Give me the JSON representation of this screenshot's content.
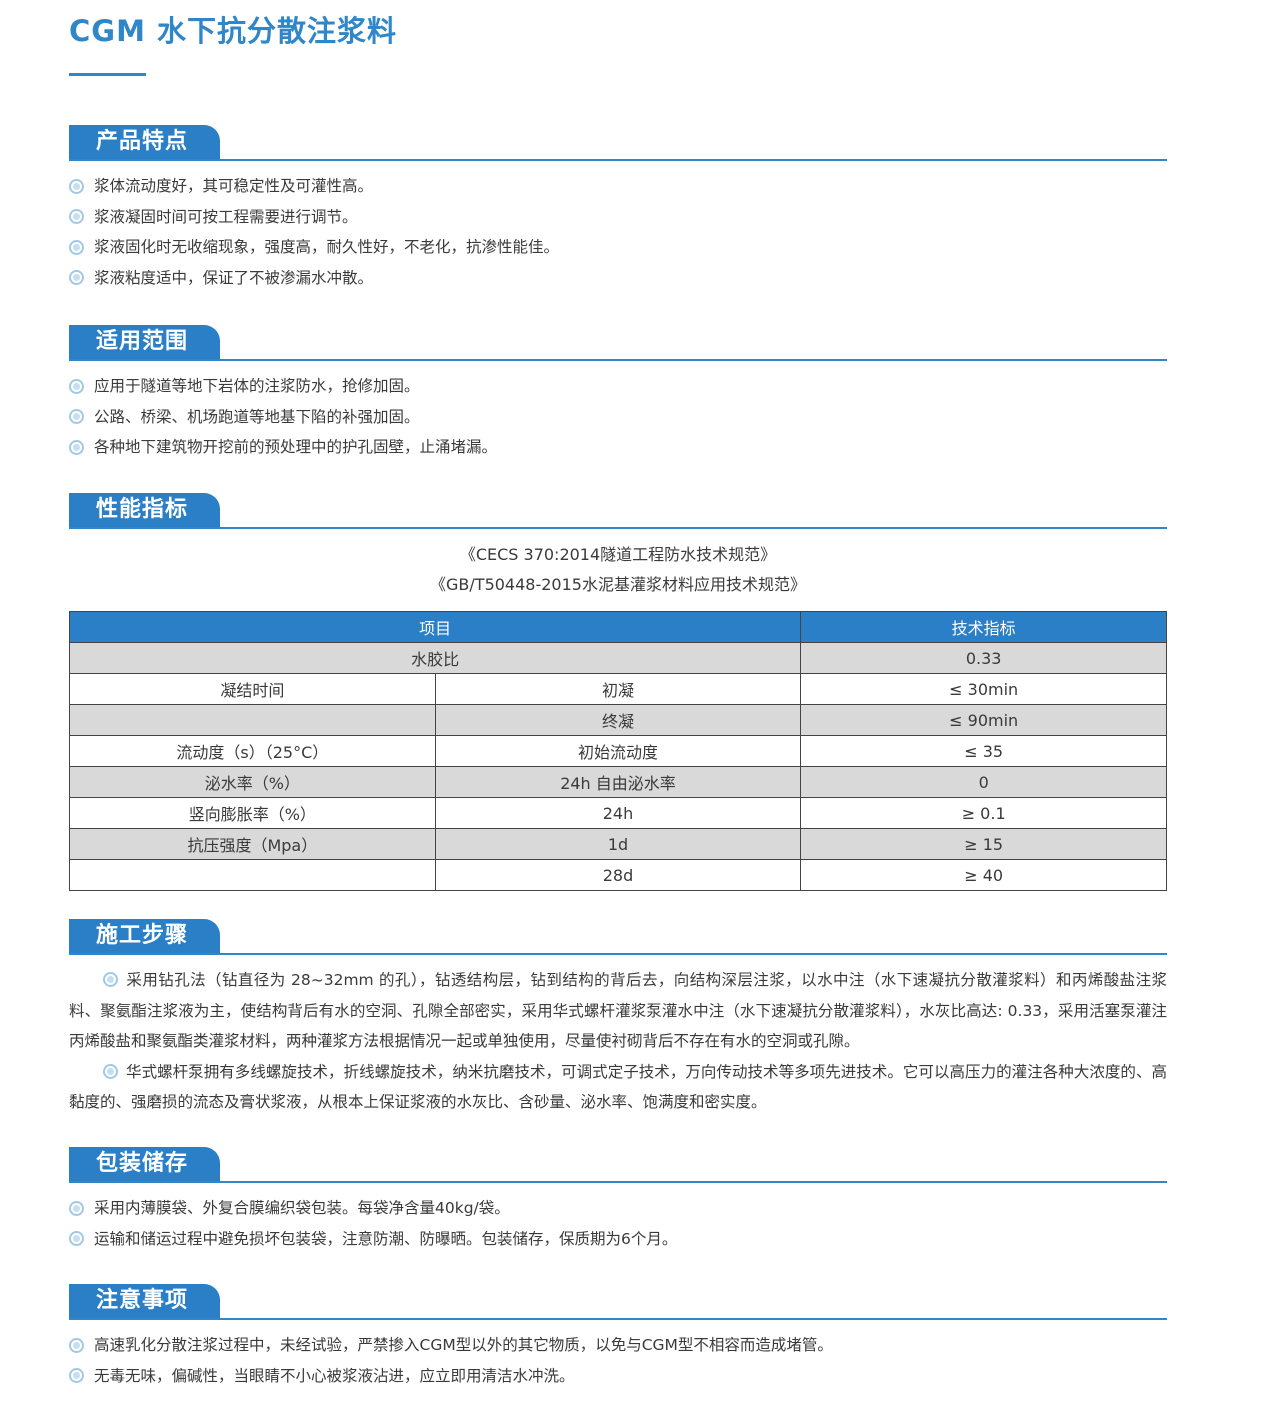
{
  "title": "CGM 水下抗分散注浆料",
  "sections": {
    "features": {
      "heading": "产品特点",
      "items": [
        "浆体流动度好，其可稳定性及可灌性高。",
        "浆液凝固时间可按工程需要进行调节。",
        "浆液固化时无收缩现象，强度高，耐久性好，不老化，抗渗性能佳。",
        "浆液粘度适中，保证了不被渗漏水冲散。"
      ]
    },
    "scope": {
      "heading": "适用范围",
      "items": [
        "应用于隧道等地下岩体的注浆防水，抢修加固。",
        "公路、桥梁、机场跑道等地基下陷的补强加固。",
        "各种地下建筑物开挖前的预处理中的护孔固壁，止涌堵漏。"
      ]
    },
    "performance": {
      "heading": "性能指标",
      "standards": [
        "《CECS 370:2014隧道工程防水技术规范》",
        "《GB/T50448-2015水泥基灌浆材料应用技术规范》"
      ],
      "table": {
        "header": [
          "项目",
          "技术指标"
        ],
        "rows": [
          [
            "水胶比",
            "",
            "0.33"
          ],
          [
            "凝结时间",
            "初凝",
            "≤ 30min"
          ],
          [
            "",
            "终凝",
            "≤ 90min"
          ],
          [
            "流动度（s）（25°C）",
            "初始流动度",
            "≤ 35"
          ],
          [
            "泌水率（%）",
            "24h 自由泌水率",
            "0"
          ],
          [
            "竖向膨胀率（%）",
            "24h",
            "≥ 0.1"
          ],
          [
            "抗压强度（Mpa）",
            "1d",
            "≥ 15"
          ],
          [
            "",
            "28d",
            "≥ 40"
          ]
        ]
      }
    },
    "steps": {
      "heading": "施工步骤",
      "paragraphs": [
        "采用钻孔法（钻直径为 28~32mm 的孔），钻透结构层，钻到结构的背后去，向结构深层注浆，以水中注（水下速凝抗分散灌浆料）和丙烯酸盐注浆料、聚氨酯注浆液为主，使结构背后有水的空洞、孔隙全部密实，采用华式螺杆灌浆泵灌水中注（水下速凝抗分散灌浆料），水灰比高达: 0.33，采用活塞泵灌注丙烯酸盐和聚氨酯类灌浆材料，两种灌浆方法根据情况一起或单独使用，尽量使衬砌背后不存在有水的空洞或孔隙。",
        "华式螺杆泵拥有多线螺旋技术，折线螺旋技术，纳米抗磨技术，可调式定子技术，万向传动技术等多项先进技术。它可以高压力的灌注各种大浓度的、高黏度的、强磨损的流态及膏状浆液，从根本上保证浆液的水灰比、含砂量、泌水率、饱满度和密实度。"
      ]
    },
    "packaging": {
      "heading": "包装储存",
      "items": [
        "采用内薄膜袋、外复合膜编织袋包装。每袋净含量40kg/袋。",
        "运输和储运过程中避免损坏包装袋，注意防潮、防曝晒。包装储存，保质期为6个月。"
      ]
    },
    "notes": {
      "heading": "注意事项",
      "items": [
        "高速乳化分散注浆过程中，未经试验，严禁掺入CGM型以外的其它物质，以免与CGM型不相容而造成堵管。",
        "无毒无味，偏碱性，当眼睛不小心被浆液沾进，应立即用清洁水冲洗。"
      ]
    }
  },
  "colors": {
    "accent": "#2a7fc7",
    "row_gray": "#d9d9d9"
  }
}
